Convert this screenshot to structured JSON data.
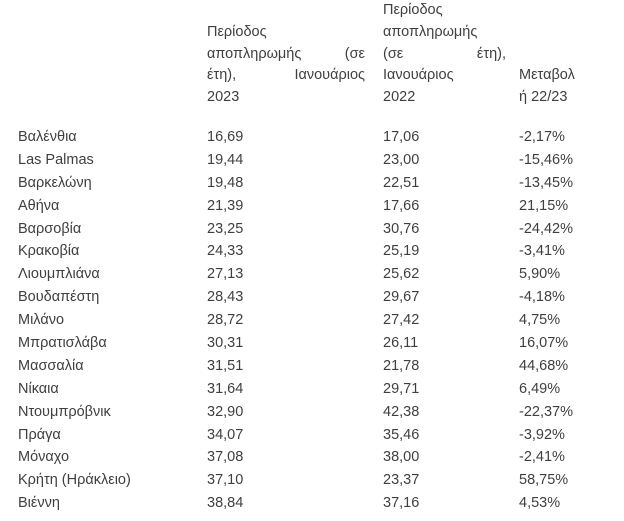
{
  "colors": {
    "background": "#ffffff",
    "text": "#3f3f3f"
  },
  "table": {
    "columns": [
      {
        "id": "city",
        "label": "",
        "lines": []
      },
      {
        "id": "period_2023",
        "label": "Περίοδος αποπληρωμής (σε έτη), Ιανουάριος 2023",
        "lines": [
          "Περίοδος",
          "αποπληρωμής (σε",
          "έτη), Ιανουάριος",
          "2023"
        ],
        "justify_lines": [
          1,
          2
        ]
      },
      {
        "id": "period_2022",
        "label": "Περίοδος αποπληρωμής (σε έτη), Ιανουάριος 2022",
        "lines": [
          "Περίοδος",
          "αποπληρωμής",
          "(σε έτη),",
          "Ιανουάριος",
          "2022"
        ],
        "justify_lines": [
          2
        ]
      },
      {
        "id": "change",
        "label": "Μεταβολή 22/23",
        "lines": [
          "Μεταβολ",
          "ή 22/23"
        ],
        "justify_lines": []
      }
    ],
    "rows": [
      {
        "city": "Βαλένθια",
        "y2023": "16,69",
        "y2022": "17,06",
        "change": "-2,17%"
      },
      {
        "city": "Las Palmas",
        "y2023": "19,44",
        "y2022": "23,00",
        "change": "-15,46%"
      },
      {
        "city": "Βαρκελώνη",
        "y2023": "19,48",
        "y2022": "22,51",
        "change": "-13,45%"
      },
      {
        "city": "Αθήνα",
        "y2023": "21,39",
        "y2022": "17,66",
        "change": "21,15%"
      },
      {
        "city": "Βαρσοβία",
        "y2023": "23,25",
        "y2022": "30,76",
        "change": "-24,42%"
      },
      {
        "city": "Κρακοβία",
        "y2023": "24,33",
        "y2022": "25,19",
        "change": "-3,41%"
      },
      {
        "city": "Λιουμπλιάνα",
        "y2023": "27,13",
        "y2022": "25,62",
        "change": "5,90%"
      },
      {
        "city": "Βουδαπέστη",
        "y2023": "28,43",
        "y2022": "29,67",
        "change": "-4,18%"
      },
      {
        "city": "Μιλάνο",
        "y2023": "28,72",
        "y2022": "27,42",
        "change": "4,75%"
      },
      {
        "city": "Μπρατισλάβα",
        "y2023": "30,31",
        "y2022": "26,11",
        "change": "16,07%"
      },
      {
        "city": "Μασσαλία",
        "y2023": "31,51",
        "y2022": "21,78",
        "change": "44,68%"
      },
      {
        "city": "Νίκαια",
        "y2023": "31,64",
        "y2022": "29,71",
        "change": "6,49%"
      },
      {
        "city": "Ντουμπρόβνικ",
        "y2023": "32,90",
        "y2022": "42,38",
        "change": "-22,37%"
      },
      {
        "city": "Πράγα",
        "y2023": "34,07",
        "y2022": "35,46",
        "change": "-3,92%"
      },
      {
        "city": "Μόναχο",
        "y2023": "37,08",
        "y2022": "38,00",
        "change": "-2,41%"
      },
      {
        "city": "Κρήτη (Ηράκλειο)",
        "y2023": "37,10",
        "y2022": "23,37",
        "change": "58,75%"
      },
      {
        "city": "Βιέννη",
        "y2023": "38,84",
        "y2022": "37,16",
        "change": "4,53%"
      }
    ]
  }
}
